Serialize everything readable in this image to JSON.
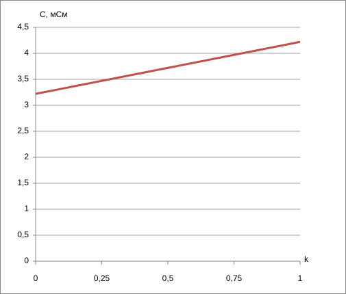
{
  "chart_data": {
    "type": "line",
    "y_label": "С, мСм",
    "x_label": "k",
    "x": [
      0,
      0.25,
      0.5,
      0.75,
      1
    ],
    "series": [
      {
        "color": "#c0504d",
        "values": [
          3.22,
          3.47,
          3.72,
          3.97,
          4.22
        ]
      }
    ],
    "xlim": [
      0,
      1
    ],
    "xticks": [
      0,
      {
        "value": 0.25,
        "label": "0,25"
      },
      {
        "value": 0.5,
        "label": "0,5"
      },
      {
        "value": 0.75,
        "label": "0,75"
      },
      1
    ],
    "ylim": [
      0,
      4.5
    ],
    "yticks": [
      0,
      {
        "value": 0.5,
        "label": "0,5"
      },
      1,
      {
        "value": 1.5,
        "label": "1,5"
      },
      2,
      {
        "value": 2.5,
        "label": "2,5"
      },
      3,
      {
        "value": 3.5,
        "label": "3,5"
      },
      4,
      {
        "value": 4.5,
        "label": "4,5"
      }
    ],
    "grid": true
  }
}
